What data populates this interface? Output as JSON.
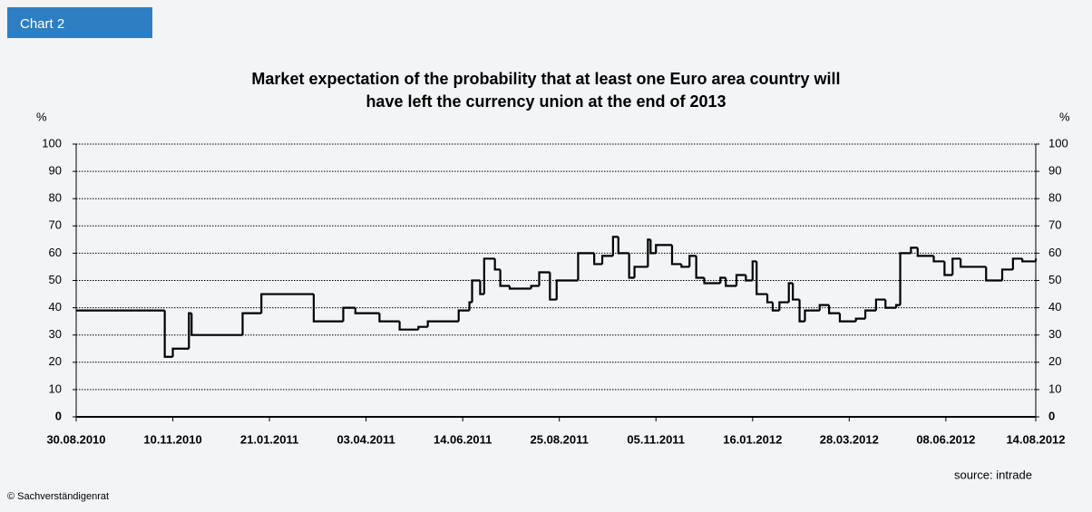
{
  "badge": "Chart 2",
  "source": "source: intrade",
  "copyright": "© Sachverständigenrat",
  "chart_data": {
    "type": "step",
    "title_lines": [
      "Market expectation of the probability that at least one Euro area country will",
      "have left the currency union at the end of 2013"
    ],
    "y_unit": "%",
    "color": "#000000",
    "grid": true,
    "xlim": [
      "2010-08-30",
      "2012-08-14"
    ],
    "xticks": [
      {
        "value": "2010-08-30",
        "label": "30.08.2010"
      },
      {
        "value": "2010-11-10",
        "label": "10.11.2010"
      },
      {
        "value": "2011-01-21",
        "label": "21.01.2011"
      },
      {
        "value": "2011-04-03",
        "label": "03.04.2011"
      },
      {
        "value": "2011-06-14",
        "label": "14.06.2011"
      },
      {
        "value": "2011-08-25",
        "label": "25.08.2011"
      },
      {
        "value": "2011-11-05",
        "label": "05.11.2011"
      },
      {
        "value": "2012-01-16",
        "label": "16.01.2012"
      },
      {
        "value": "2012-03-28",
        "label": "28.03.2012"
      },
      {
        "value": "2012-06-08",
        "label": "08.06.2012"
      },
      {
        "value": "2012-08-14",
        "label": "14.08.2012"
      }
    ],
    "ylim": [
      0,
      100
    ],
    "yticks": [
      0,
      10,
      20,
      30,
      40,
      50,
      60,
      70,
      80,
      90,
      100
    ],
    "x": [
      "2010-08-30",
      "2010-11-04",
      "2010-11-10",
      "2010-11-22",
      "2010-11-24",
      "2011-01-01",
      "2011-01-15",
      "2011-02-23",
      "2011-03-17",
      "2011-03-26",
      "2011-04-13",
      "2011-04-28",
      "2011-05-12",
      "2011-05-19",
      "2011-06-11",
      "2011-06-19",
      "2011-06-21",
      "2011-06-27",
      "2011-06-30",
      "2011-07-08",
      "2011-07-12",
      "2011-07-19",
      "2011-08-04",
      "2011-08-10",
      "2011-08-18",
      "2011-08-23",
      "2011-09-08",
      "2011-09-20",
      "2011-09-26",
      "2011-10-04",
      "2011-10-08",
      "2011-10-16",
      "2011-10-20",
      "2011-10-30",
      "2011-11-01",
      "2011-11-05",
      "2011-11-17",
      "2011-11-24",
      "2011-11-30",
      "2011-12-05",
      "2011-12-11",
      "2011-12-23",
      "2011-12-27",
      "2012-01-04",
      "2012-01-11",
      "2012-01-16",
      "2012-01-19",
      "2012-01-27",
      "2012-01-31",
      "2012-02-05",
      "2012-02-12",
      "2012-02-15",
      "2012-02-20",
      "2012-02-24",
      "2012-03-06",
      "2012-03-13",
      "2012-03-21",
      "2012-04-02",
      "2012-04-09",
      "2012-04-17",
      "2012-04-24",
      "2012-05-02",
      "2012-05-05",
      "2012-05-13",
      "2012-05-18",
      "2012-05-30",
      "2012-06-07",
      "2012-06-13",
      "2012-06-19",
      "2012-07-08",
      "2012-07-20",
      "2012-07-28",
      "2012-08-04",
      "2012-08-14"
    ],
    "values": [
      39,
      22,
      25,
      38,
      30,
      38,
      45,
      35,
      40,
      38,
      35,
      32,
      33,
      35,
      39,
      42,
      50,
      45,
      58,
      54,
      48,
      47,
      48,
      53,
      43,
      50,
      60,
      56,
      59,
      66,
      60,
      51,
      55,
      65,
      60,
      63,
      56,
      55,
      59,
      51,
      49,
      51,
      48,
      52,
      50,
      57,
      45,
      42,
      39,
      42,
      49,
      43,
      35,
      39,
      41,
      38,
      35,
      36,
      39,
      43,
      40,
      41,
      60,
      62,
      59,
      57,
      52,
      58,
      55,
      50,
      54,
      58,
      57,
      58
    ]
  }
}
